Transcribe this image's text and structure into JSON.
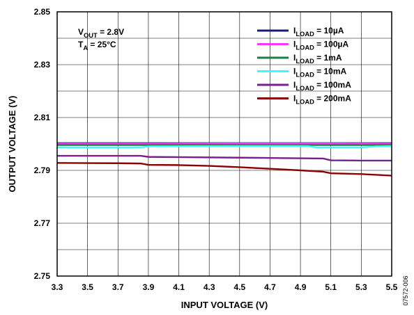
{
  "watermark_id": "07572-006",
  "annotation": {
    "line1_main": "V",
    "line1_sub": "OUT",
    "line1_rest": " = 2.8V",
    "line2_main": "T",
    "line2_sub": "A",
    "line2_rest": " = 25°C"
  },
  "chart_data": {
    "type": "line",
    "title": "",
    "xlabel": "INPUT VOLTAGE (V)",
    "ylabel": "OUTPUT VOLTAGE (V)",
    "xlim": [
      3.3,
      5.5
    ],
    "ylim": [
      2.75,
      2.85
    ],
    "x_ticks": [
      "3.3",
      "3.5",
      "3.7",
      "3.9",
      "4.1",
      "4.3",
      "4.5",
      "4.7",
      "4.9",
      "5.1",
      "5.3",
      "5.5"
    ],
    "y_ticks": [
      "2.75",
      "2.77",
      "2.79",
      "2.81",
      "2.83",
      "2.85"
    ],
    "grid": true,
    "legend_position": "top-right",
    "series": [
      {
        "name_main": "I",
        "name_sub": "LOAD",
        "name_rest": " = 10µA",
        "color": "#1a1a6e",
        "x": [
          3.3,
          5.5
        ],
        "y": [
          2.8003,
          2.8003
        ]
      },
      {
        "name_main": "I",
        "name_sub": "LOAD",
        "name_rest": " = 100µA",
        "color": "#ff33ff",
        "x": [
          3.3,
          3.9,
          4.5,
          5.1,
          5.5
        ],
        "y": [
          2.8001,
          2.8001,
          2.8002,
          2.8002,
          2.8001
        ]
      },
      {
        "name_main": "I",
        "name_sub": "LOAD",
        "name_rest": " = 1mA",
        "color": "#1a8040",
        "x": [
          3.3,
          5.5
        ],
        "y": [
          2.7996,
          2.7996
        ]
      },
      {
        "name_main": "I",
        "name_sub": "LOAD",
        "name_rest": " = 10mA",
        "color": "#33ffff",
        "x": [
          3.3,
          3.85,
          3.9,
          4.5,
          4.95,
          5.0,
          5.3,
          5.4,
          5.5
        ],
        "y": [
          2.7987,
          2.7987,
          2.7991,
          2.7992,
          2.7992,
          2.7987,
          2.7987,
          2.7991,
          2.7992
        ]
      },
      {
        "name_main": "I",
        "name_sub": "LOAD",
        "name_rest": " = 100mA",
        "color": "#7a1f8f",
        "x": [
          3.3,
          3.85,
          3.9,
          4.5,
          4.7,
          5.05,
          5.1,
          5.3,
          5.5
        ],
        "y": [
          2.7955,
          2.7955,
          2.7951,
          2.7948,
          2.7947,
          2.7945,
          2.7938,
          2.7937,
          2.7937
        ]
      },
      {
        "name_main": "I",
        "name_sub": "LOAD",
        "name_rest": " = 200mA",
        "color": "#8b0000",
        "x": [
          3.3,
          3.7,
          3.85,
          3.9,
          4.1,
          4.3,
          4.5,
          4.7,
          4.9,
          5.05,
          5.1,
          5.3,
          5.5
        ],
        "y": [
          2.7928,
          2.7927,
          2.7926,
          2.7921,
          2.792,
          2.7917,
          2.7912,
          2.7906,
          2.79,
          2.7895,
          2.7889,
          2.7886,
          2.788
        ]
      }
    ]
  }
}
